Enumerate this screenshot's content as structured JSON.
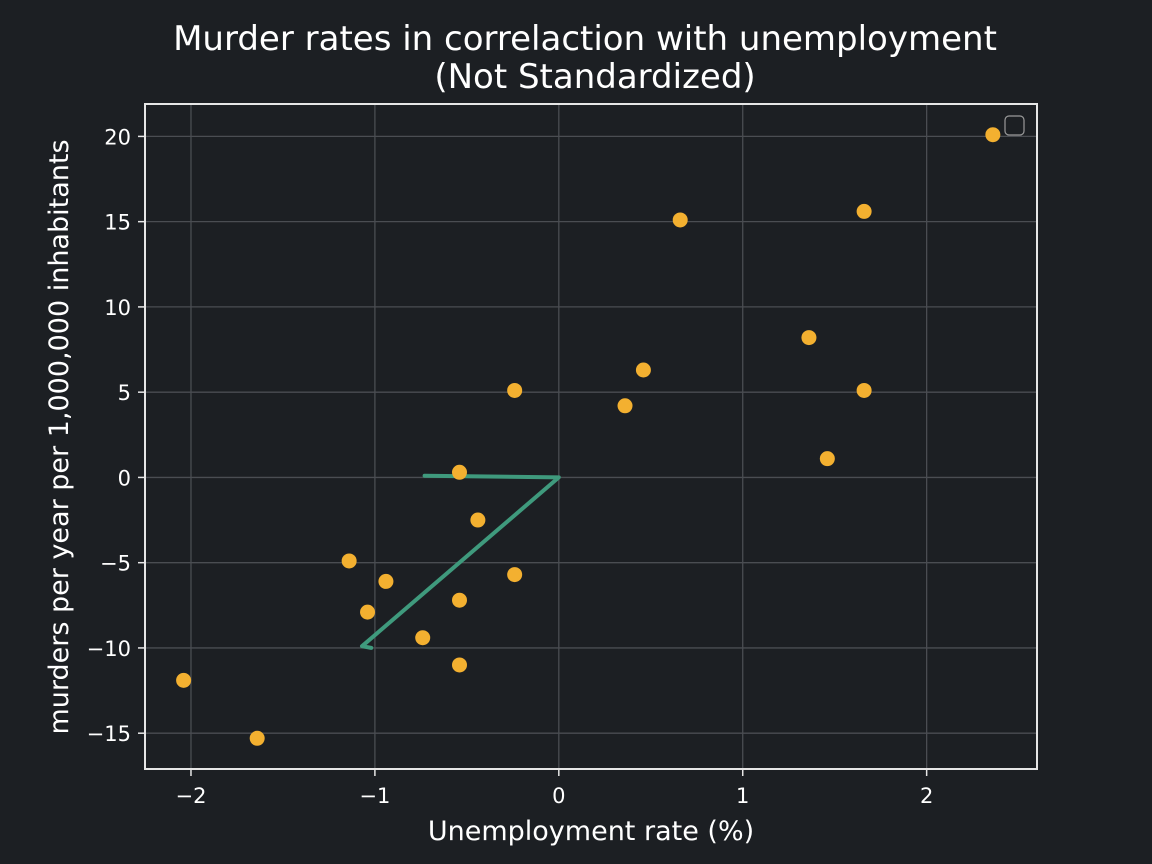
{
  "colors": {
    "background": "#1c1f23",
    "grid": "#4a4d52",
    "frame": "#e6e6e6",
    "points": "#f3b030",
    "line": "#3f9a7d",
    "text": "#ffffff"
  },
  "chart_data": {
    "type": "scatter",
    "title": "Murder rates in correlaction with unemployment",
    "subtitle": "(Not Standardized)",
    "xlabel": "Unemployment rate (%)",
    "ylabel": "murders per year per 1,000,000 inhabitants",
    "xlim": [
      -2.25,
      2.6
    ],
    "ylim": [
      -17.1,
      21.9
    ],
    "xticks": [
      -2,
      -1,
      0,
      1,
      2
    ],
    "xtick_labels": [
      "−2",
      "−1",
      "0",
      "1",
      "2"
    ],
    "yticks": [
      -15,
      -10,
      -5,
      0,
      5,
      10,
      15,
      20
    ],
    "ytick_labels": [
      "−15",
      "−10",
      "−5",
      "0",
      "5",
      "10",
      "15",
      "20"
    ],
    "grid": true,
    "legend": "top-right, empty",
    "points": {
      "x": [
        2.36,
        1.66,
        0.66,
        1.36,
        0.46,
        1.66,
        -0.24,
        0.36,
        1.46,
        -0.54,
        -0.44,
        -1.14,
        -0.94,
        -0.24,
        -0.54,
        -1.04,
        -0.74,
        -0.54,
        -2.04,
        -1.64
      ],
      "y": [
        20.1,
        15.6,
        15.1,
        8.2,
        6.3,
        5.1,
        5.1,
        4.2,
        1.1,
        0.3,
        -2.5,
        -4.9,
        -6.1,
        -5.7,
        -7.2,
        -7.9,
        -9.4,
        -11.0,
        -11.9,
        -15.3
      ]
    },
    "line": {
      "x": [
        -0.73,
        0.0,
        -1.07,
        -1.02
      ],
      "y": [
        0.1,
        0.0,
        -9.9,
        -10.0
      ]
    }
  }
}
